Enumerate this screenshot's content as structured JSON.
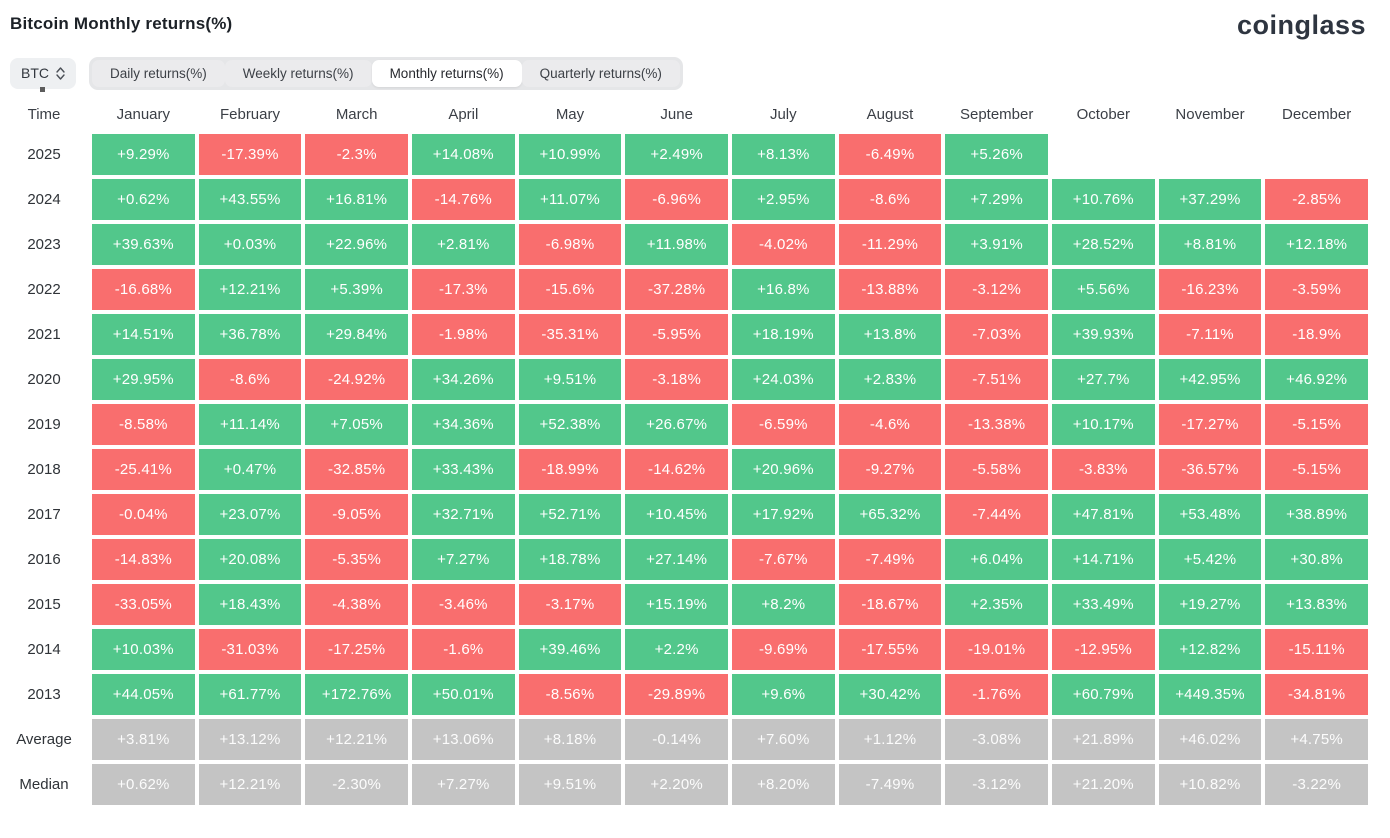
{
  "header": {
    "title": "Bitcoin Monthly returns(%)",
    "logo": "coinglass"
  },
  "controls": {
    "coin_selected": "BTC",
    "tabs": [
      {
        "label": "Daily returns(%)",
        "active": false
      },
      {
        "label": "Weekly returns(%)",
        "active": false
      },
      {
        "label": "Monthly returns(%)",
        "active": true
      },
      {
        "label": "Quarterly returns(%)",
        "active": false
      }
    ]
  },
  "colors": {
    "positive": "#52c78b",
    "negative": "#f96e6e",
    "summary": "#c4c4c4"
  },
  "table": {
    "time_header": "Time",
    "months": [
      "January",
      "February",
      "March",
      "April",
      "May",
      "June",
      "July",
      "August",
      "September",
      "October",
      "November",
      "December"
    ],
    "rows": [
      {
        "label": "2025",
        "type": "year",
        "values": [
          "+9.29%",
          "-17.39%",
          "-2.3%",
          "+14.08%",
          "+10.99%",
          "+2.49%",
          "+8.13%",
          "-6.49%",
          "+5.26%",
          "",
          "",
          ""
        ]
      },
      {
        "label": "2024",
        "type": "year",
        "values": [
          "+0.62%",
          "+43.55%",
          "+16.81%",
          "-14.76%",
          "+11.07%",
          "-6.96%",
          "+2.95%",
          "-8.6%",
          "+7.29%",
          "+10.76%",
          "+37.29%",
          "-2.85%"
        ]
      },
      {
        "label": "2023",
        "type": "year",
        "values": [
          "+39.63%",
          "+0.03%",
          "+22.96%",
          "+2.81%",
          "-6.98%",
          "+11.98%",
          "-4.02%",
          "-11.29%",
          "+3.91%",
          "+28.52%",
          "+8.81%",
          "+12.18%"
        ]
      },
      {
        "label": "2022",
        "type": "year",
        "values": [
          "-16.68%",
          "+12.21%",
          "+5.39%",
          "-17.3%",
          "-15.6%",
          "-37.28%",
          "+16.8%",
          "-13.88%",
          "-3.12%",
          "+5.56%",
          "-16.23%",
          "-3.59%"
        ]
      },
      {
        "label": "2021",
        "type": "year",
        "values": [
          "+14.51%",
          "+36.78%",
          "+29.84%",
          "-1.98%",
          "-35.31%",
          "-5.95%",
          "+18.19%",
          "+13.8%",
          "-7.03%",
          "+39.93%",
          "-7.11%",
          "-18.9%"
        ]
      },
      {
        "label": "2020",
        "type": "year",
        "values": [
          "+29.95%",
          "-8.6%",
          "-24.92%",
          "+34.26%",
          "+9.51%",
          "-3.18%",
          "+24.03%",
          "+2.83%",
          "-7.51%",
          "+27.7%",
          "+42.95%",
          "+46.92%"
        ]
      },
      {
        "label": "2019",
        "type": "year",
        "values": [
          "-8.58%",
          "+11.14%",
          "+7.05%",
          "+34.36%",
          "+52.38%",
          "+26.67%",
          "-6.59%",
          "-4.6%",
          "-13.38%",
          "+10.17%",
          "-17.27%",
          "-5.15%"
        ]
      },
      {
        "label": "2018",
        "type": "year",
        "values": [
          "-25.41%",
          "+0.47%",
          "-32.85%",
          "+33.43%",
          "-18.99%",
          "-14.62%",
          "+20.96%",
          "-9.27%",
          "-5.58%",
          "-3.83%",
          "-36.57%",
          "-5.15%"
        ]
      },
      {
        "label": "2017",
        "type": "year",
        "values": [
          "-0.04%",
          "+23.07%",
          "-9.05%",
          "+32.71%",
          "+52.71%",
          "+10.45%",
          "+17.92%",
          "+65.32%",
          "-7.44%",
          "+47.81%",
          "+53.48%",
          "+38.89%"
        ]
      },
      {
        "label": "2016",
        "type": "year",
        "values": [
          "-14.83%",
          "+20.08%",
          "-5.35%",
          "+7.27%",
          "+18.78%",
          "+27.14%",
          "-7.67%",
          "-7.49%",
          "+6.04%",
          "+14.71%",
          "+5.42%",
          "+30.8%"
        ]
      },
      {
        "label": "2015",
        "type": "year",
        "values": [
          "-33.05%",
          "+18.43%",
          "-4.38%",
          "-3.46%",
          "-3.17%",
          "+15.19%",
          "+8.2%",
          "-18.67%",
          "+2.35%",
          "+33.49%",
          "+19.27%",
          "+13.83%"
        ]
      },
      {
        "label": "2014",
        "type": "year",
        "values": [
          "+10.03%",
          "-31.03%",
          "-17.25%",
          "-1.6%",
          "+39.46%",
          "+2.2%",
          "-9.69%",
          "-17.55%",
          "-19.01%",
          "-12.95%",
          "+12.82%",
          "-15.11%"
        ]
      },
      {
        "label": "2013",
        "type": "year",
        "values": [
          "+44.05%",
          "+61.77%",
          "+172.76%",
          "+50.01%",
          "-8.56%",
          "-29.89%",
          "+9.6%",
          "+30.42%",
          "-1.76%",
          "+60.79%",
          "+449.35%",
          "-34.81%"
        ]
      },
      {
        "label": "Average",
        "type": "summary",
        "values": [
          "+3.81%",
          "+13.12%",
          "+12.21%",
          "+13.06%",
          "+8.18%",
          "-0.14%",
          "+7.60%",
          "+1.12%",
          "-3.08%",
          "+21.89%",
          "+46.02%",
          "+4.75%"
        ]
      },
      {
        "label": "Median",
        "type": "summary",
        "values": [
          "+0.62%",
          "+12.21%",
          "-2.30%",
          "+7.27%",
          "+9.51%",
          "+2.20%",
          "+8.20%",
          "-7.49%",
          "-3.12%",
          "+21.20%",
          "+10.82%",
          "-3.22%"
        ]
      }
    ]
  }
}
